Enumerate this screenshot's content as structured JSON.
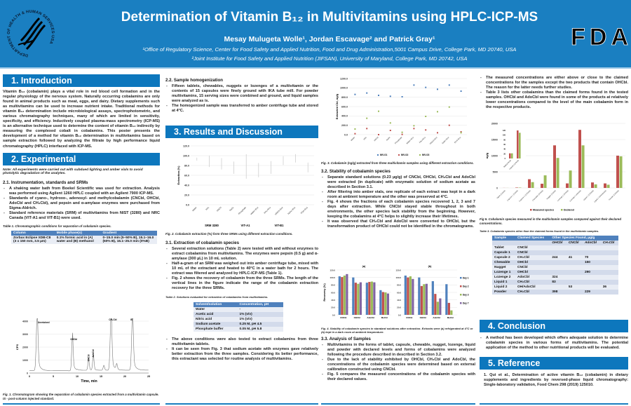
{
  "header": {
    "title": "Determination of Vitamin B₁₂ in Multivitamins using HPLC-ICP-MS",
    "authors": "Mesay Mulugeta Wolle¹, Jordan Escavage² and Patrick Gray¹",
    "affiliation1": "¹Office of Regulatory Science, Center for Food Safety and Applied Nutrition, Food and Drug Administration,5001 Campus Drive, College Park, MD 20740, USA",
    "affiliation2": "²Joint Institute for Food Safety and Applied Nutrition (JIFSAN), University of Maryland, College Park, MD 20742, USA",
    "hhs_logo_text": "DEPARTMENT OF HEALTH & HUMAN SERVICES·USA",
    "fda_logo_text": "FDA"
  },
  "intro": {
    "heading": "1. Introduction",
    "text": "Vitamin B₁₂ (cobalamin) plays a vital role in red blood cell formation and in the regular physiology of the nervous system. Naturally occurring cobalamins are only found in animal products such as meat, eggs, and dairy. Dietary supplements such as multivitamins can be used to increase nutrient intake. Traditional methods for vitamin B₁₂ determination include microbiological assays, spectrophotometric, and various chromatography techniques, many of which are limited in sensitivity, specificity, and efficiency. Inductively coupled plasma-mass spectrometry (ICP-MS) is an alternative technique used to determine the content of vitamin B₁₂ indirectly by measuring the complexed cobalt in cobalamins. This poster presents the development of a method for vitamin B₁₂ determination in multivitamins based on sample extraction followed by analyzing the filtrate by high performance liquid chromatography (HPLC) interfaced with ICP-MS."
  },
  "experimental": {
    "heading": "2. Experimental",
    "note": "Note: All experiments were carried out with subdued lighting and amber vials to avoid photolytic degradation of the analytes.",
    "s21": {
      "heading": "2.1. Instrumentation, standards and SRMs",
      "bullets": [
        "A shaking water bath from Boekel Scientific was used for extraction. Analysis was performed using Agilent 1260 HPLC coupled with an Agilent 7900 ICP-MS.",
        "Standards of cyano-, hydroxo-, adenosyl- and methylcobalamin (CNCbl, OHCbl, AdoCbl and CH₃Cbl), and pepsin and α-amylase enzymes were purchased from Sigma-Aldrich.",
        "Standard reference materials (SRM) of multivitamins from NIST (3280) and NRC Canada (VIT-A1 and VIT-B1) were used."
      ]
    },
    "table1": {
      "caption": "Table 1. Chromatographic conditions for separation of cobalamin species.",
      "headers": [
        "Column",
        "Mobile phase(s)",
        "Gradient"
      ],
      "row": [
        "Zorbax Eclipse XDB-C8 (3 x 150 mm, 3.5 µm)",
        "0.1% formic acid in (A) water and (B) methanol",
        "0–15.0 min (5–50% B), 15.1–16.0 (50% B), 16.1–25.0 min (0%B)"
      ]
    },
    "fig1_caption": "Fig. 1. Chromatogram showing the separation of cobalamin species extracted from a multivitamin capsule. IS - post-column injected standard.",
    "s22": {
      "heading": "2.2. Sample homogenization",
      "bullets": [
        "Fifteen tablets, chewables, nuggets or lozenges of a multivitamin or the contents of 15 capsules were finely ground with IKA tube mill. For powder multivitamins, 15 serving sizes were combined and ground, and liquid samples were analyzed as is.",
        "The homogenized sample was transferred to amber centrifuge tube and stored at 4°C."
      ]
    }
  },
  "results": {
    "heading": "3. Results and Discussion",
    "fig2_caption": "Fig. 2. Cobalamin extraction (%) form three SRMs using different extraction conditions.",
    "s31": {
      "heading": "3.1. Extraction of cobalamin species",
      "bullets": [
        "Several extraction solutions (Table 2) were tested with and without enzymes to extract cobalamins from multivitamins. The enzymes were pepsin (0.5 g) and α-amylase (300 µL) in 10 mL solution.",
        "Half-a-gram of an SRM was weighed out into amber centrifuge tube, mixed with 10 mL of the extractant and heated to 40°C in a water bath for 2 hours. The extract was filtered and analyzed by HPLC-ICP-MS (Table 1).",
        "Fig. 2 shows the recovery of cobalamin from the three SRMs. The length of the vertical lines in the figure indicate the range of the cobalamin extraction recovery for the three SRMs."
      ]
    },
    "table2": {
      "caption": "Table 2. Solutions evaluated for extraction of cobalamins from multivitamins.",
      "headers": [
        "Solvent/solution",
        "Concentration, pH"
      ],
      "rows": [
        [
          "Water",
          "-"
        ],
        [
          "Acetic acid",
          "1% (v/v)"
        ],
        [
          "Nitric acid",
          "1% (v/v)"
        ],
        [
          "Sodium acetate",
          "0.25 M, pH 4.5"
        ],
        [
          "Phosphate buffer",
          "0.05 M, pH 5.8"
        ]
      ]
    },
    "s31b": {
      "bullets": [
        "The above conditions were also tested to extract cobalamins from three multivitamin tablets.",
        "It can be seen from Fig. 3 that sodium acetate with enzymes gave relatively better extraction from the three samples. Considering its better performance, this extractant was selected for routine analysis of multivitamins."
      ]
    },
    "fig3_caption": "Fig. 3. Cobalamin (ng/g) extracted from three multivitamin samples using different extraction conditions.",
    "s32": {
      "heading": "3.2. Stability of cobalamin species",
      "bullets": [
        "Separate standard solutions (0.23 µg/g) of CNCbl, OHCbl, CH₃Cbl and AdoCbl were extracted (in duplicate) with enzymatic solution of sodium acetate as described in Section 3.1.",
        "After filtering into amber vials, one replicate of each extract was kept in a dark room at ambient temperature and the other was preserved at 4°C.",
        "Fig. 4 shows the fractions of each cobalamin species recovered 1, 2, 3 and 7 days after extraction. While CNCbl stayed stable throughout in both environments, the other species lack stability from the beginning. However, keeping the cobalamins at 4°C helps to slightly increase their lifetimes.",
        "It was observed that CH₃Cbl and AdoCbl were converted to OHCbl, but the transformation product of OHCbl could not be identified in the chromatograms."
      ]
    },
    "fig4_caption": "Fig. 4. Stability of cobalamin species in standard solutions after extraction. Extracts were (a) refrigerated at 4°C or (b) kept in a dark room at ambient temperature.",
    "s33": {
      "heading": "3.3. Analysis of Samples",
      "bullets": [
        "Multivitamins in the forms of tablet, capsule, chewable, nugget, lozenge, liquid and powder with declared levels and forms of cobalamins were analyzed following the procedure described in described in Section 3.2.",
        "Due to the lack of stability exhibited by OHCbl, CH₃Cbl and AdoCbl, the concentrations of the cobalamin species were determined based on external calibration constructed using CNCbl.",
        "Fig. 5 compares the measured concentrations of the cobalamin species with their declared values."
      ]
    },
    "s33b": {
      "bullets": [
        "The measured concentrations are either above or close to the claimed concentrations for the samples except the two products that contain OHCbl. The reason for the latter needs further studies.",
        "Table 3 lists other cobalamins than the claimed forms found in the tested samples. OHCbl and AdoCbl were found in some of the products at relatively lower concentrations compared to the level of the main cobalamin form in the respective products."
      ]
    },
    "fig5_caption": "Fig 5. Cobalamin species measured in the multivitamin samples compared against their declared concentrations.",
    "table3": {
      "caption": "Table 3. Cobalamin species other than the claimed forms found in the multivitamin samples.",
      "headers": [
        "Sample",
        "Claimed Species",
        "Other Species Found, µg/g"
      ],
      "subheaders": [
        "OHCbl",
        "CNCbl",
        "AdoCbl",
        "CH₃Cbl"
      ],
      "rows": [
        [
          "Tablet",
          "CNCbl",
          "",
          "",
          "",
          ""
        ],
        [
          "Capsule 1",
          "CNCbl",
          "",
          "",
          "",
          ""
        ],
        [
          "Capsule 2",
          "CH₃Cbl",
          "244",
          "41",
          "70",
          ""
        ],
        [
          "Chewable",
          "OHCbl",
          "",
          "",
          "150",
          ""
        ],
        [
          "Nugget",
          "CNCbl",
          "",
          "",
          "",
          ""
        ],
        [
          "Lozenge 1",
          "OHCbl",
          "",
          "",
          "290",
          ""
        ],
        [
          "Lozenge 2",
          "AdoCbl",
          "324",
          "",
          "",
          ""
        ],
        [
          "Liquid 1",
          "CH₃Cbl",
          "83",
          "",
          "",
          ""
        ],
        [
          "Liquid 2",
          "OH/AdoCbl",
          "",
          "53",
          "",
          "36"
        ],
        [
          "Powder",
          "CH₃Cbl",
          "398",
          "",
          "229",
          ""
        ]
      ]
    }
  },
  "conclusion": {
    "heading": "4. Conclusion",
    "bullets": [
      "A method has been developed which offers adequate solution to determine cobalamin species in various forms of multivitamins. The potential application of the method to other nutritional products will be evaluated."
    ]
  },
  "reference": {
    "heading": "5. Reference",
    "items": [
      "1. Qui et al., Determination of active vitamin B₁₂ (cobalamin) in dietary supplements and ingredients by reversed-phase liquid chromatography: Single-laboratory validation, Food Chem 298 (2019) 125010."
    ]
  },
  "colors": {
    "header": "#1a7fc1",
    "section": "#0d77bd",
    "blue": "#4f81bd",
    "red": "#c0504d",
    "green": "#9bbb59",
    "purple": "#8064a2"
  },
  "chart_data": [
    {
      "id": "fig1",
      "type": "line",
      "xlabel": "Time, min",
      "ylabel": "CPS",
      "xlim": [
        0,
        25
      ],
      "ylim": [
        0,
        4000
      ],
      "xticks": [
        0,
        5,
        10,
        15,
        20,
        25
      ],
      "yticks": [
        0,
        1000,
        2000,
        3000,
        4000
      ],
      "baseline": 200,
      "peaks": [
        {
          "time": 1.6,
          "height": 4000,
          "label": "Unretained"
        },
        {
          "time": 9.0,
          "height": 2500,
          "label": "OHCbl"
        },
        {
          "time": 12.4,
          "height": 800,
          "label": "CNCbl"
        },
        {
          "time": 13.4,
          "height": 1100,
          "label": "AdoCbl"
        },
        {
          "time": 15.6,
          "height": 350,
          "label": ""
        },
        {
          "time": 17.1,
          "height": 4000,
          "label": "CH₃Cbl"
        },
        {
          "time": 18.3,
          "height": 400,
          "label": ""
        },
        {
          "time": 21.6,
          "height": 4000,
          "label": "IS"
        }
      ]
    },
    {
      "id": "fig2",
      "type": "range",
      "ylabel": "Extraction (%)",
      "ylim": [
        0,
        120
      ],
      "yticks": [
        0,
        20,
        40,
        60,
        80,
        100,
        120
      ],
      "groups": [
        "SRM 3280",
        "VIT-A1",
        "VIT-B1"
      ],
      "categories": [
        "Water",
        "HAc",
        "HNO3",
        "NaAc",
        "Phosphate",
        "Water+Enz",
        "HAc+Enz",
        "HNO3+Enz",
        "NaAc+Enz",
        "PO4+Enz"
      ],
      "ranges": [
        [
          90,
          96
        ],
        [
          77,
          100
        ],
        [
          72,
          95
        ],
        [
          63,
          88
        ],
        [
          53,
          103
        ],
        [
          56,
          85
        ],
        [
          63,
          89
        ],
        [
          81,
          99
        ],
        [
          86,
          103
        ],
        [
          66,
          86
        ]
      ]
    },
    {
      "id": "fig3",
      "type": "scatter",
      "ylabel": "Extracted Cbl, ng/g",
      "ylim": [
        0,
        1200
      ],
      "yticks": [
        0,
        200,
        400,
        600,
        800,
        1000,
        1200
      ],
      "legend": "bottom",
      "categories": [
        "Water",
        "HAc",
        "HNO3",
        "NaAc",
        "Phosphate",
        "Water+Enz",
        "HAc+Enz",
        "HNO3+Enz",
        "NaAc+Enz",
        "PO4+Enz"
      ],
      "series": [
        {
          "name": "MV-01",
          "color": "#4f81bd",
          "values": [
            860,
            890,
            840,
            820,
            810,
            1060,
            1010,
            970,
            1060,
            930
          ]
        },
        {
          "name": "MV-02",
          "color": "#c0504d",
          "values": [
            20,
            130,
            0,
            90,
            5,
            130,
            100,
            40,
            200,
            60
          ]
        },
        {
          "name": "MV-03",
          "color": "#9bbb59",
          "values": [
            120,
            350,
            500,
            250,
            50,
            190,
            390,
            490,
            590,
            40
          ]
        }
      ]
    },
    {
      "id": "fig4a",
      "type": "bar",
      "title": "(a)",
      "ylabel": "Recovery (%)",
      "ylim": [
        0,
        120
      ],
      "yticks": [
        0,
        20,
        40,
        60,
        80,
        100,
        120
      ],
      "categories": [
        "CNCbl",
        "OHCbl",
        "AdoCbl",
        "MeCbl"
      ],
      "series": [
        {
          "name": "Day 1",
          "color": "#4f81bd",
          "values": [
            103,
            100,
            86,
            66
          ]
        },
        {
          "name": "Day 2",
          "color": "#c0504d",
          "values": [
            101,
            86,
            88,
            61
          ]
        },
        {
          "name": "Day 3",
          "color": "#9bbb59",
          "values": [
            105,
            83,
            89,
            60
          ]
        },
        {
          "name": "Day 7",
          "color": "#8064a2",
          "values": [
            109,
            87,
            87,
            57
          ]
        }
      ]
    },
    {
      "id": "fig4b",
      "type": "bar",
      "title": "(b)",
      "ylim": [
        0,
        120
      ],
      "yticks": [
        0,
        20,
        40,
        60,
        80,
        100,
        120
      ],
      "legend": "right",
      "categories": [
        "CNCbl",
        "OHCbl",
        "AdoCbl",
        "MeCbl"
      ],
      "series": [
        {
          "name": "Day 1",
          "color": "#4f81bd",
          "values": [
            105,
            100,
            90,
            82
          ]
        },
        {
          "name": "Day 2",
          "color": "#c0504d",
          "values": [
            100,
            77,
            56,
            32
          ]
        },
        {
          "name": "Day 3",
          "color": "#9bbb59",
          "values": [
            103,
            82,
            35,
            12
          ]
        },
        {
          "name": "Day 7",
          "color": "#8064a2",
          "values": [
            96,
            83,
            44,
            0
          ]
        }
      ]
    },
    {
      "id": "fig5",
      "type": "bar",
      "ylabel": "ng/g",
      "ylim": [
        0,
        20000
      ],
      "yticks": [
        0,
        5000,
        10000,
        15000,
        20000
      ],
      "legend": "bottom",
      "categories": [
        "Tablet (CNCbl)",
        "Capsule 1 (CNCbl)",
        "Capsule 2 (CH3Cbl)",
        "Chewable (OHCbl)",
        "Nugget (CNCbl)",
        "Lozenge 1 (OHCbl)",
        "Lozenge 2 (AdoCbl)",
        "Liquid 1 (CH3Cbl)",
        "Liquid 2 (OH/AdoCbl)",
        "Powder (CH3Cbl)"
      ],
      "series": [
        {
          "name": "Measured species",
          "color": "#c0504d",
          "values": [
            22,
            120,
            2700,
            1300,
            13200,
            1400,
            18000,
            1700,
            1400,
            10000
          ]
        },
        {
          "name": "Declared",
          "color": "#9bbb59",
          "values": [
            22,
            110,
            1800,
            3900,
            9300,
            5400,
            13200,
            1100,
            1000,
            9800
          ]
        }
      ],
      "inset": {
        "ylim": [
          0,
          120
        ],
        "yticks": [
          0,
          20,
          40,
          60,
          80,
          100,
          120
        ],
        "categories": [
          "Tablet (CNCbl)",
          "Capsule 1 (CNCbl)"
        ]
      }
    }
  ]
}
